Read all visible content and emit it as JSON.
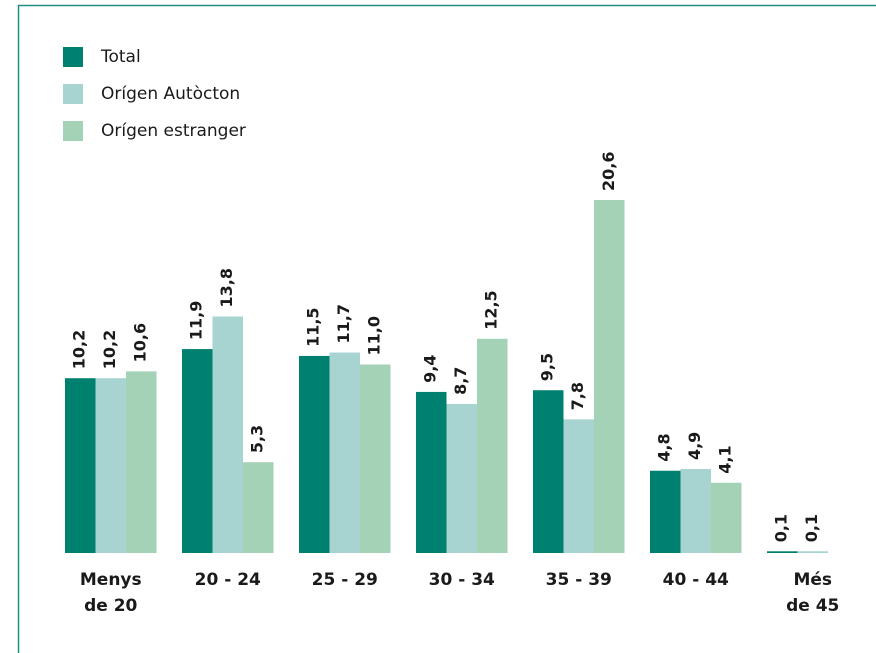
{
  "chart_data": {
    "type": "bar",
    "categories": [
      "Menys de 20",
      "20 - 24",
      "25 - 29",
      "30 - 34",
      "35 - 39",
      "40 - 44",
      "Més de 45"
    ],
    "series": [
      {
        "name": "Total",
        "color": "#00806f",
        "values": [
          10.2,
          11.9,
          11.5,
          9.4,
          9.5,
          4.8,
          0.1
        ],
        "value_labels": [
          "10,2",
          "11,9",
          "11,5",
          "9,4",
          "9,5",
          "4,8",
          "0,1"
        ]
      },
      {
        "name": "Orígen Autòcton",
        "color": "#a7d3d1",
        "values": [
          10.2,
          13.8,
          11.7,
          8.7,
          7.8,
          4.9,
          0.1
        ],
        "value_labels": [
          "10,2",
          "13,8",
          "11,7",
          "8,7",
          "7,8",
          "4,9",
          "0,1"
        ]
      },
      {
        "name": "Orígen estranger",
        "color": "#a4d2b6",
        "values": [
          10.6,
          5.3,
          11.0,
          12.5,
          20.6,
          4.1,
          null
        ],
        "value_labels": [
          "10,6",
          "5,3",
          "11,0",
          "12,5",
          "20,6",
          "4,1",
          null
        ]
      }
    ],
    "legend": "top-left"
  }
}
